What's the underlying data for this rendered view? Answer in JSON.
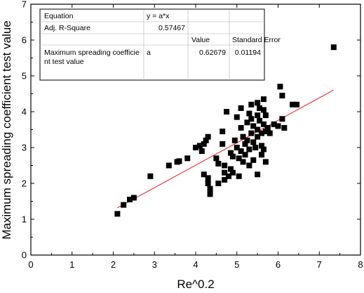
{
  "chart_data": {
    "type": "scatter",
    "xlabel": "Re^0.2",
    "ylabel": "Maximum spreading coefficient test value",
    "xlim": [
      0,
      8
    ],
    "ylim": [
      0,
      7
    ],
    "x_ticks": [
      "0",
      "1",
      "2",
      "3",
      "4",
      "5",
      "6",
      "7",
      "8"
    ],
    "y_ticks": [
      "0",
      "1",
      "2",
      "3",
      "4",
      "5",
      "6",
      "7"
    ],
    "grid": false,
    "colors": {
      "points": "#000000",
      "fit_line": "#e31a1c"
    },
    "points": [
      [
        2.1,
        1.15
      ],
      [
        2.25,
        1.4
      ],
      [
        2.4,
        1.55
      ],
      [
        2.5,
        1.6
      ],
      [
        2.9,
        2.2
      ],
      [
        3.35,
        2.5
      ],
      [
        3.55,
        2.6
      ],
      [
        3.6,
        2.62
      ],
      [
        3.8,
        2.7
      ],
      [
        4.0,
        3.0
      ],
      [
        4.1,
        3.05
      ],
      [
        4.15,
        2.9
      ],
      [
        4.2,
        3.1
      ],
      [
        4.2,
        2.25
      ],
      [
        4.25,
        3.2
      ],
      [
        4.3,
        3.3
      ],
      [
        4.3,
        2.15
      ],
      [
        4.3,
        2.0
      ],
      [
        4.35,
        1.85
      ],
      [
        4.35,
        1.7
      ],
      [
        4.5,
        2.7
      ],
      [
        4.55,
        2.55
      ],
      [
        4.55,
        2.0
      ],
      [
        4.65,
        3.45
      ],
      [
        4.65,
        3.1
      ],
      [
        4.7,
        2.5
      ],
      [
        4.7,
        2.3
      ],
      [
        4.7,
        2.1
      ],
      [
        4.75,
        4.0
      ],
      [
        4.8,
        2.2
      ],
      [
        4.85,
        2.85
      ],
      [
        4.85,
        2.4
      ],
      [
        4.9,
        2.75
      ],
      [
        4.9,
        2.3
      ],
      [
        4.95,
        3.2
      ],
      [
        5.0,
        3.85
      ],
      [
        5.0,
        3.0
      ],
      [
        5.05,
        2.7
      ],
      [
        5.05,
        2.2
      ],
      [
        5.1,
        4.1
      ],
      [
        5.1,
        3.55
      ],
      [
        5.1,
        2.9
      ],
      [
        5.15,
        3.3
      ],
      [
        5.15,
        2.6
      ],
      [
        5.2,
        3.1
      ],
      [
        5.2,
        2.8
      ],
      [
        5.25,
        3.7
      ],
      [
        5.25,
        3.2
      ],
      [
        5.3,
        3.95
      ],
      [
        5.3,
        2.95
      ],
      [
        5.3,
        2.5
      ],
      [
        5.35,
        4.2
      ],
      [
        5.35,
        3.8
      ],
      [
        5.35,
        3.4
      ],
      [
        5.4,
        3.6
      ],
      [
        5.4,
        3.15
      ],
      [
        5.4,
        2.65
      ],
      [
        5.45,
        3.0
      ],
      [
        5.5,
        4.25
      ],
      [
        5.5,
        3.9
      ],
      [
        5.5,
        3.5
      ],
      [
        5.5,
        3.3
      ],
      [
        5.5,
        2.25
      ],
      [
        5.55,
        4.1
      ],
      [
        5.55,
        3.75
      ],
      [
        5.6,
        3.4
      ],
      [
        5.6,
        3.05
      ],
      [
        5.6,
        2.8
      ],
      [
        5.65,
        4.35
      ],
      [
        5.65,
        4.05
      ],
      [
        5.65,
        3.65
      ],
      [
        5.65,
        2.95
      ],
      [
        5.7,
        3.9
      ],
      [
        5.7,
        3.45
      ],
      [
        5.7,
        2.6
      ],
      [
        5.75,
        3.55
      ],
      [
        5.8,
        3.4
      ],
      [
        5.9,
        3.65
      ],
      [
        6.0,
        3.6
      ],
      [
        6.05,
        4.7
      ],
      [
        6.1,
        4.45
      ],
      [
        6.1,
        3.8
      ],
      [
        6.15,
        3.55
      ],
      [
        6.35,
        4.2
      ],
      [
        6.45,
        4.2
      ],
      [
        7.35,
        5.8
      ]
    ],
    "fit": {
      "slope": 0.62679,
      "x_range": [
        2.1,
        7.35
      ]
    },
    "stats_table": {
      "equation_label": "Equation",
      "equation_value": "y = a*x",
      "adj_r_label": "Adj. R-Square",
      "adj_r_value": "0.57467",
      "col_value": "Value",
      "col_stderr": "Standard Error",
      "param_name_line1": "Maximum spreading coefficie",
      "param_name_line2": "nt test value",
      "param_symbol": "a",
      "param_value": "0.62679",
      "param_stderr": "0.01194"
    }
  }
}
